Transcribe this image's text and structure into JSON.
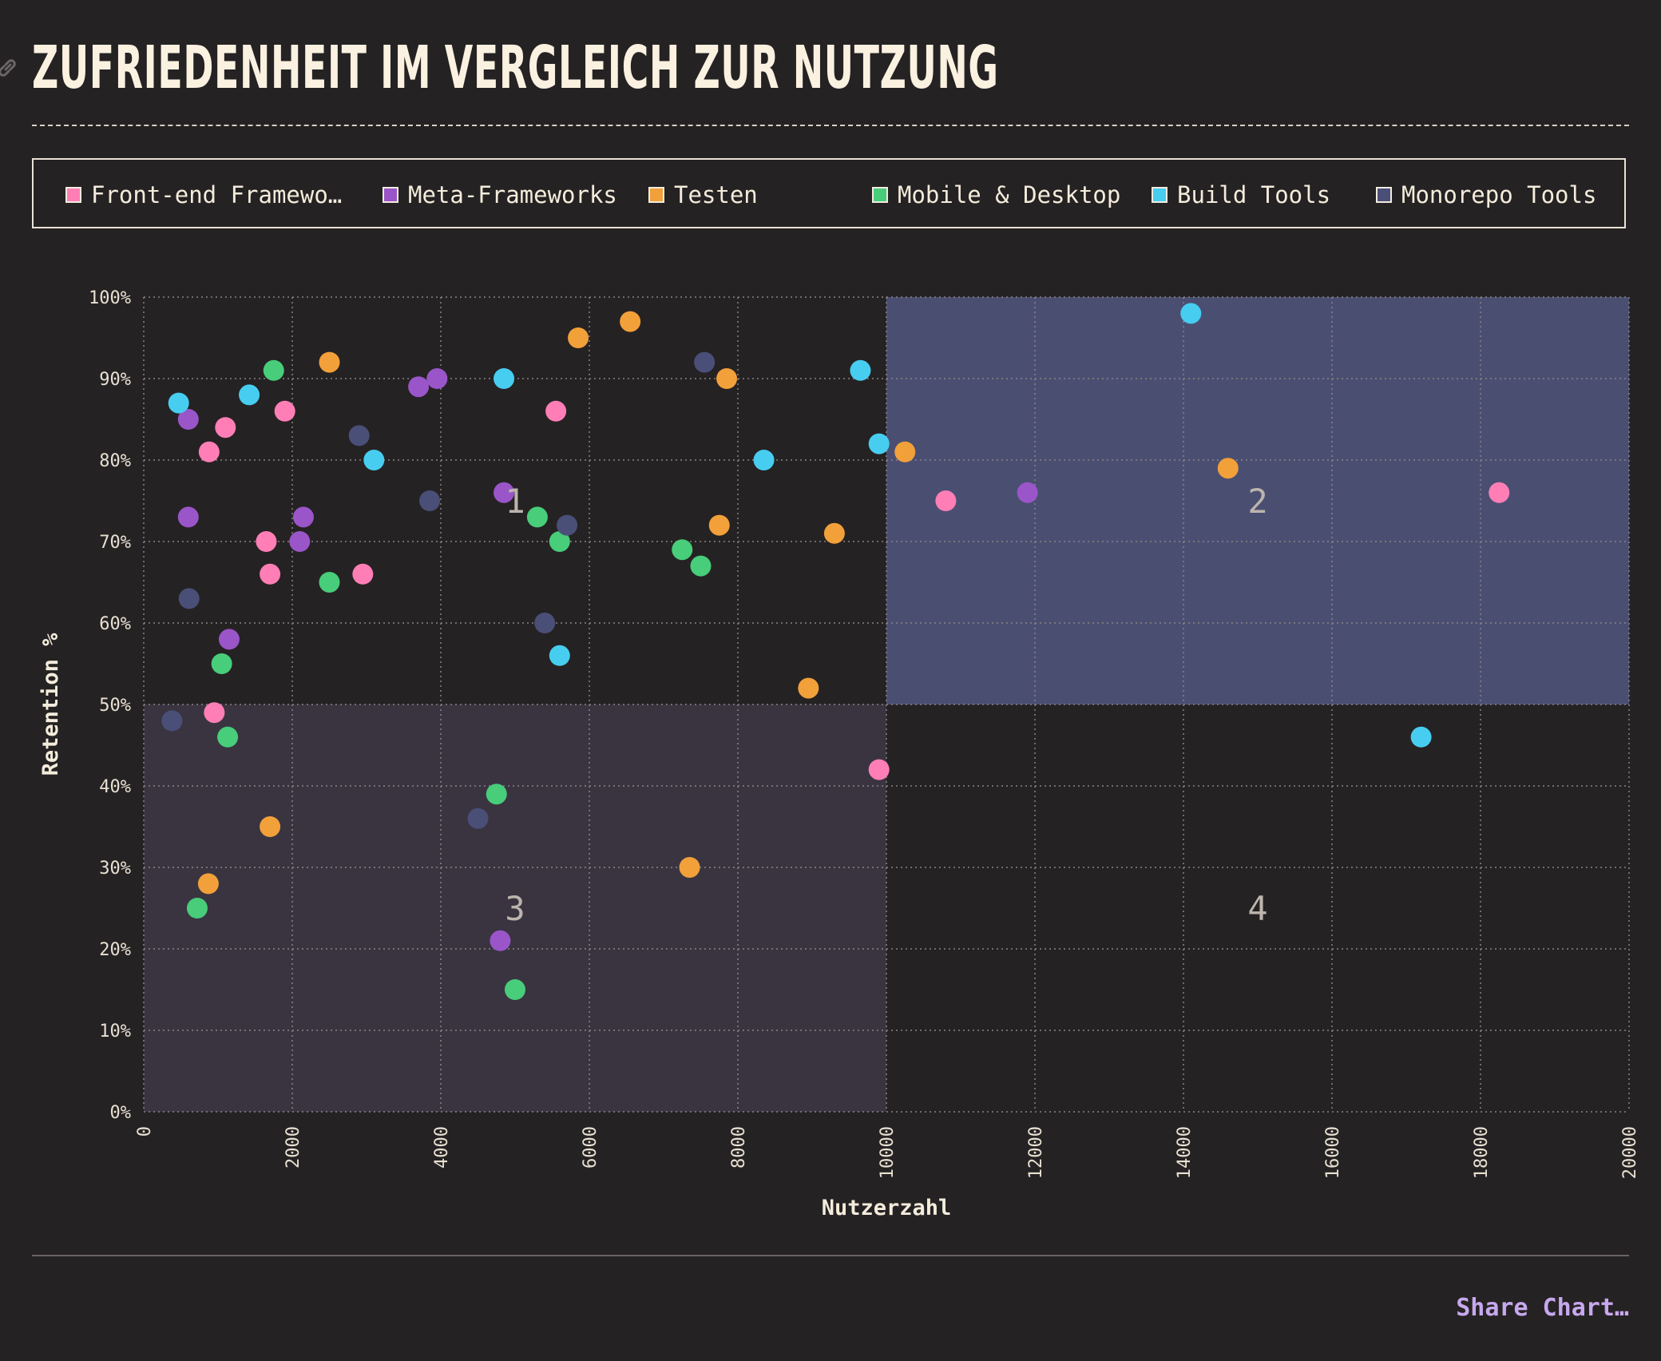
{
  "header": {
    "title": "ZUFRIEDENHEIT IM VERGLEICH ZUR NUTZUNG",
    "link_icon": "link-icon"
  },
  "legend": {
    "items": [
      {
        "label": "Front-end Framewo…",
        "color": "#ff7eb6"
      },
      {
        "label": "Meta-Frameworks",
        "color": "#9a55c9"
      },
      {
        "label": "Testen",
        "color": "#f2a03a"
      },
      {
        "label": "Mobile & Desktop",
        "color": "#48cd7a"
      },
      {
        "label": "Build Tools",
        "color": "#47cdf0"
      },
      {
        "label": "Monorepo Tools",
        "color": "#4a4f78"
      }
    ]
  },
  "chart_data": {
    "type": "scatter",
    "xlabel": "Nutzerzahl",
    "ylabel": "Retention %",
    "xlim": [
      0,
      20000
    ],
    "ylim": [
      0,
      100
    ],
    "x_ticks": [
      "0",
      "2000",
      "4000",
      "6000",
      "8000",
      "10000",
      "12000",
      "14000",
      "16000",
      "18000",
      "20000"
    ],
    "y_ticks": [
      "0%",
      "10%",
      "20%",
      "30%",
      "40%",
      "50%",
      "60%",
      "70%",
      "80%",
      "90%",
      "100%"
    ],
    "grid": true,
    "quadrants": [
      {
        "label": "1",
        "x": [
          0,
          10000
        ],
        "y": [
          50,
          100
        ],
        "fill": ""
      },
      {
        "label": "2",
        "x": [
          10000,
          20000
        ],
        "y": [
          50,
          100
        ],
        "fill": "#4a4f72"
      },
      {
        "label": "3",
        "x": [
          0,
          10000
        ],
        "y": [
          0,
          50
        ],
        "fill": "#3a3441"
      },
      {
        "label": "4",
        "x": [
          10000,
          20000
        ],
        "y": [
          0,
          50
        ],
        "fill": ""
      }
    ],
    "series": [
      {
        "name": "Front-end Framewo…",
        "color": "#ff7eb6",
        "points": [
          [
            880,
            81
          ],
          [
            1100,
            84
          ],
          [
            1900,
            86
          ],
          [
            1650,
            70
          ],
          [
            1700,
            66
          ],
          [
            950,
            49
          ],
          [
            2950,
            66
          ],
          [
            5550,
            86
          ],
          [
            9900,
            42
          ],
          [
            10800,
            75
          ],
          [
            18250,
            76
          ]
        ]
      },
      {
        "name": "Meta-Frameworks",
        "color": "#9a55c9",
        "points": [
          [
            600,
            85
          ],
          [
            600,
            73
          ],
          [
            1150,
            58
          ],
          [
            2150,
            73
          ],
          [
            2100,
            70
          ],
          [
            3700,
            89
          ],
          [
            3950,
            90
          ],
          [
            4850,
            76
          ],
          [
            4800,
            21
          ],
          [
            11900,
            76
          ]
        ]
      },
      {
        "name": "Testen",
        "color": "#f2a03a",
        "points": [
          [
            2500,
            92
          ],
          [
            5850,
            95
          ],
          [
            6550,
            97
          ],
          [
            7850,
            90
          ],
          [
            7750,
            72
          ],
          [
            9300,
            71
          ],
          [
            8950,
            52
          ],
          [
            10250,
            81
          ],
          [
            14600,
            79
          ],
          [
            1700,
            35
          ],
          [
            870,
            28
          ],
          [
            7350,
            30
          ]
        ]
      },
      {
        "name": "Mobile & Desktop",
        "color": "#48cd7a",
        "points": [
          [
            1750,
            91
          ],
          [
            2500,
            65
          ],
          [
            1050,
            55
          ],
          [
            1130,
            46
          ],
          [
            720,
            25
          ],
          [
            4750,
            39
          ],
          [
            5000,
            15
          ],
          [
            5300,
            73
          ],
          [
            5600,
            70
          ],
          [
            7250,
            69
          ],
          [
            7500,
            67
          ]
        ]
      },
      {
        "name": "Build Tools",
        "color": "#47cdf0",
        "points": [
          [
            470,
            87
          ],
          [
            1420,
            88
          ],
          [
            3100,
            80
          ],
          [
            4850,
            90
          ],
          [
            5600,
            56
          ],
          [
            8350,
            80
          ],
          [
            9650,
            91
          ],
          [
            9900,
            82
          ],
          [
            14100,
            98
          ],
          [
            17200,
            46
          ]
        ]
      },
      {
        "name": "Monorepo Tools",
        "color": "#4a4f78",
        "points": [
          [
            610,
            63
          ],
          [
            380,
            48
          ],
          [
            2900,
            83
          ],
          [
            3850,
            75
          ],
          [
            4500,
            36
          ],
          [
            5400,
            60
          ],
          [
            5700,
            72
          ],
          [
            7550,
            92
          ]
        ]
      }
    ]
  },
  "footer": {
    "share_label": "Share Chart…"
  }
}
